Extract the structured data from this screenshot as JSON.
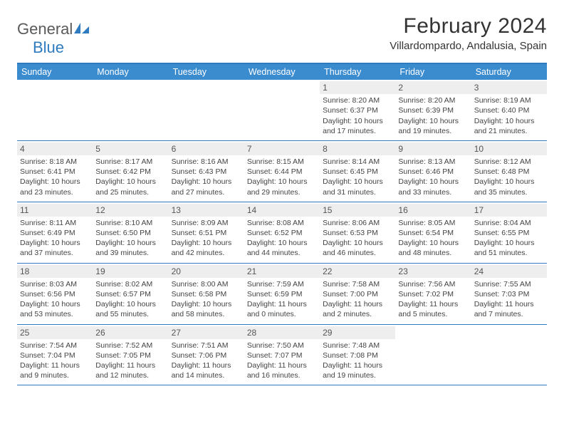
{
  "brand": {
    "word1": "General",
    "word2": "Blue"
  },
  "title": "February 2024",
  "location": "Villardompardo, Andalusia, Spain",
  "colors": {
    "header_bg": "#3b8bcf",
    "border": "#2f7bbf",
    "daynum_bg": "#eeeeee",
    "text": "#444444",
    "page_bg": "#ffffff"
  },
  "day_headers": [
    "Sunday",
    "Monday",
    "Tuesday",
    "Wednesday",
    "Thursday",
    "Friday",
    "Saturday"
  ],
  "weeks": [
    [
      null,
      null,
      null,
      null,
      {
        "n": "1",
        "sunrise": "Sunrise: 8:20 AM",
        "sunset": "Sunset: 6:37 PM",
        "dl1": "Daylight: 10 hours",
        "dl2": "and 17 minutes."
      },
      {
        "n": "2",
        "sunrise": "Sunrise: 8:20 AM",
        "sunset": "Sunset: 6:39 PM",
        "dl1": "Daylight: 10 hours",
        "dl2": "and 19 minutes."
      },
      {
        "n": "3",
        "sunrise": "Sunrise: 8:19 AM",
        "sunset": "Sunset: 6:40 PM",
        "dl1": "Daylight: 10 hours",
        "dl2": "and 21 minutes."
      }
    ],
    [
      {
        "n": "4",
        "sunrise": "Sunrise: 8:18 AM",
        "sunset": "Sunset: 6:41 PM",
        "dl1": "Daylight: 10 hours",
        "dl2": "and 23 minutes."
      },
      {
        "n": "5",
        "sunrise": "Sunrise: 8:17 AM",
        "sunset": "Sunset: 6:42 PM",
        "dl1": "Daylight: 10 hours",
        "dl2": "and 25 minutes."
      },
      {
        "n": "6",
        "sunrise": "Sunrise: 8:16 AM",
        "sunset": "Sunset: 6:43 PM",
        "dl1": "Daylight: 10 hours",
        "dl2": "and 27 minutes."
      },
      {
        "n": "7",
        "sunrise": "Sunrise: 8:15 AM",
        "sunset": "Sunset: 6:44 PM",
        "dl1": "Daylight: 10 hours",
        "dl2": "and 29 minutes."
      },
      {
        "n": "8",
        "sunrise": "Sunrise: 8:14 AM",
        "sunset": "Sunset: 6:45 PM",
        "dl1": "Daylight: 10 hours",
        "dl2": "and 31 minutes."
      },
      {
        "n": "9",
        "sunrise": "Sunrise: 8:13 AM",
        "sunset": "Sunset: 6:46 PM",
        "dl1": "Daylight: 10 hours",
        "dl2": "and 33 minutes."
      },
      {
        "n": "10",
        "sunrise": "Sunrise: 8:12 AM",
        "sunset": "Sunset: 6:48 PM",
        "dl1": "Daylight: 10 hours",
        "dl2": "and 35 minutes."
      }
    ],
    [
      {
        "n": "11",
        "sunrise": "Sunrise: 8:11 AM",
        "sunset": "Sunset: 6:49 PM",
        "dl1": "Daylight: 10 hours",
        "dl2": "and 37 minutes."
      },
      {
        "n": "12",
        "sunrise": "Sunrise: 8:10 AM",
        "sunset": "Sunset: 6:50 PM",
        "dl1": "Daylight: 10 hours",
        "dl2": "and 39 minutes."
      },
      {
        "n": "13",
        "sunrise": "Sunrise: 8:09 AM",
        "sunset": "Sunset: 6:51 PM",
        "dl1": "Daylight: 10 hours",
        "dl2": "and 42 minutes."
      },
      {
        "n": "14",
        "sunrise": "Sunrise: 8:08 AM",
        "sunset": "Sunset: 6:52 PM",
        "dl1": "Daylight: 10 hours",
        "dl2": "and 44 minutes."
      },
      {
        "n": "15",
        "sunrise": "Sunrise: 8:06 AM",
        "sunset": "Sunset: 6:53 PM",
        "dl1": "Daylight: 10 hours",
        "dl2": "and 46 minutes."
      },
      {
        "n": "16",
        "sunrise": "Sunrise: 8:05 AM",
        "sunset": "Sunset: 6:54 PM",
        "dl1": "Daylight: 10 hours",
        "dl2": "and 48 minutes."
      },
      {
        "n": "17",
        "sunrise": "Sunrise: 8:04 AM",
        "sunset": "Sunset: 6:55 PM",
        "dl1": "Daylight: 10 hours",
        "dl2": "and 51 minutes."
      }
    ],
    [
      {
        "n": "18",
        "sunrise": "Sunrise: 8:03 AM",
        "sunset": "Sunset: 6:56 PM",
        "dl1": "Daylight: 10 hours",
        "dl2": "and 53 minutes."
      },
      {
        "n": "19",
        "sunrise": "Sunrise: 8:02 AM",
        "sunset": "Sunset: 6:57 PM",
        "dl1": "Daylight: 10 hours",
        "dl2": "and 55 minutes."
      },
      {
        "n": "20",
        "sunrise": "Sunrise: 8:00 AM",
        "sunset": "Sunset: 6:58 PM",
        "dl1": "Daylight: 10 hours",
        "dl2": "and 58 minutes."
      },
      {
        "n": "21",
        "sunrise": "Sunrise: 7:59 AM",
        "sunset": "Sunset: 6:59 PM",
        "dl1": "Daylight: 11 hours",
        "dl2": "and 0 minutes."
      },
      {
        "n": "22",
        "sunrise": "Sunrise: 7:58 AM",
        "sunset": "Sunset: 7:00 PM",
        "dl1": "Daylight: 11 hours",
        "dl2": "and 2 minutes."
      },
      {
        "n": "23",
        "sunrise": "Sunrise: 7:56 AM",
        "sunset": "Sunset: 7:02 PM",
        "dl1": "Daylight: 11 hours",
        "dl2": "and 5 minutes."
      },
      {
        "n": "24",
        "sunrise": "Sunrise: 7:55 AM",
        "sunset": "Sunset: 7:03 PM",
        "dl1": "Daylight: 11 hours",
        "dl2": "and 7 minutes."
      }
    ],
    [
      {
        "n": "25",
        "sunrise": "Sunrise: 7:54 AM",
        "sunset": "Sunset: 7:04 PM",
        "dl1": "Daylight: 11 hours",
        "dl2": "and 9 minutes."
      },
      {
        "n": "26",
        "sunrise": "Sunrise: 7:52 AM",
        "sunset": "Sunset: 7:05 PM",
        "dl1": "Daylight: 11 hours",
        "dl2": "and 12 minutes."
      },
      {
        "n": "27",
        "sunrise": "Sunrise: 7:51 AM",
        "sunset": "Sunset: 7:06 PM",
        "dl1": "Daylight: 11 hours",
        "dl2": "and 14 minutes."
      },
      {
        "n": "28",
        "sunrise": "Sunrise: 7:50 AM",
        "sunset": "Sunset: 7:07 PM",
        "dl1": "Daylight: 11 hours",
        "dl2": "and 16 minutes."
      },
      {
        "n": "29",
        "sunrise": "Sunrise: 7:48 AM",
        "sunset": "Sunset: 7:08 PM",
        "dl1": "Daylight: 11 hours",
        "dl2": "and 19 minutes."
      },
      null,
      null
    ]
  ]
}
